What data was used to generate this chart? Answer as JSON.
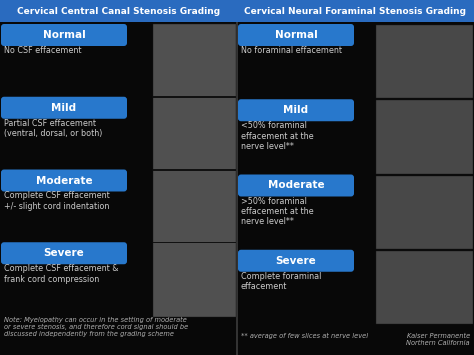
{
  "bg_color": "#080808",
  "title_color": "#ffffff",
  "title_bg": "#2a6bbf",
  "btn_color": "#2878cc",
  "btn_text_color": "#ffffff",
  "body_text_color": "#cccccc",
  "note_text_color": "#b0b0b0",
  "left_title": "Cervical Central Canal Stenosis Grading",
  "right_title": "Cervical Neural Foraminal Stenosis Grading",
  "left_grades": [
    {
      "grade": "Normal",
      "description": "No CSF effacement"
    },
    {
      "grade": "Mild",
      "description": "Partial CSF effacement\n(ventral, dorsal, or both)"
    },
    {
      "grade": "Moderate",
      "description": "Complete CSF effacement\n+/- slight cord indentation"
    },
    {
      "grade": "Severe",
      "description": "Complete CSF effacement &\nfrank cord compression"
    }
  ],
  "right_grades": [
    {
      "grade": "Normal",
      "description": "No foraminal effacement"
    },
    {
      "grade": "Mild",
      "description": "<50% foraminal\neffacement at the\nnerve level**"
    },
    {
      "grade": "Moderate",
      "description": ">50% foraminal\neffacement at the\nnerve level**"
    },
    {
      "grade": "Severe",
      "description": "Complete foraminal\neffacement"
    }
  ],
  "left_note": "Note: Myelopathy can occur in the setting of moderate\nor severe stenosis, and therefore cord signal should be\ndiscussed independently from the grading scheme",
  "right_note": "** average of few slices at nerve level",
  "brand": "Kaiser Permanente\nNorthern California",
  "divider_color": "#333333",
  "img_color_left": "#505050",
  "img_color_right": "#484848"
}
